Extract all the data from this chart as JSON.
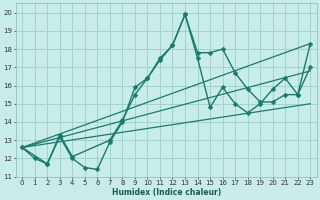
{
  "title": "",
  "xlabel": "Humidex (Indice chaleur)",
  "ylabel": "",
  "background_color": "#c8ede8",
  "grid_color": "#9ecfc8",
  "line_color": "#1a7a6e",
  "xlim": [
    -0.5,
    23.5
  ],
  "ylim": [
    11,
    20.5
  ],
  "xticks": [
    0,
    1,
    2,
    3,
    4,
    5,
    6,
    7,
    8,
    9,
    10,
    11,
    12,
    13,
    14,
    15,
    16,
    17,
    18,
    19,
    20,
    21,
    22,
    23
  ],
  "yticks": [
    11,
    12,
    13,
    14,
    15,
    16,
    17,
    18,
    19,
    20
  ],
  "series": [
    {
      "x": [
        0,
        1,
        2,
        3,
        4,
        5,
        6,
        7,
        8,
        9,
        10,
        11,
        12,
        13,
        14,
        15,
        16,
        17,
        18,
        19,
        20,
        21,
        22,
        23
      ],
      "y": [
        12.6,
        12.0,
        11.7,
        13.2,
        12.0,
        11.5,
        11.4,
        12.9,
        14.0,
        15.9,
        16.4,
        17.5,
        18.2,
        19.9,
        17.8,
        17.8,
        18.0,
        16.7,
        15.8,
        15.1,
        15.1,
        15.5,
        15.5,
        18.3
      ],
      "marker": "D",
      "markersize": 2.5,
      "linewidth": 1.0
    },
    {
      "x": [
        0,
        2,
        3,
        4,
        7,
        8,
        9,
        10,
        11,
        12,
        13,
        14,
        15,
        16,
        17,
        18,
        19,
        20,
        21,
        22,
        23
      ],
      "y": [
        12.6,
        11.7,
        13.3,
        12.1,
        13.0,
        14.1,
        15.5,
        16.4,
        17.4,
        18.2,
        19.9,
        17.5,
        14.8,
        15.9,
        15.0,
        14.5,
        15.0,
        15.8,
        16.4,
        15.5,
        17.0
      ],
      "marker": "D",
      "markersize": 2.5,
      "linewidth": 1.0
    },
    {
      "x": [
        0,
        23
      ],
      "y": [
        12.6,
        18.3
      ],
      "marker": null,
      "markersize": 0,
      "linewidth": 0.9
    },
    {
      "x": [
        0,
        23
      ],
      "y": [
        12.6,
        16.8
      ],
      "marker": null,
      "markersize": 0,
      "linewidth": 0.9
    },
    {
      "x": [
        0,
        23
      ],
      "y": [
        12.6,
        15.0
      ],
      "marker": null,
      "markersize": 0,
      "linewidth": 0.9
    }
  ]
}
